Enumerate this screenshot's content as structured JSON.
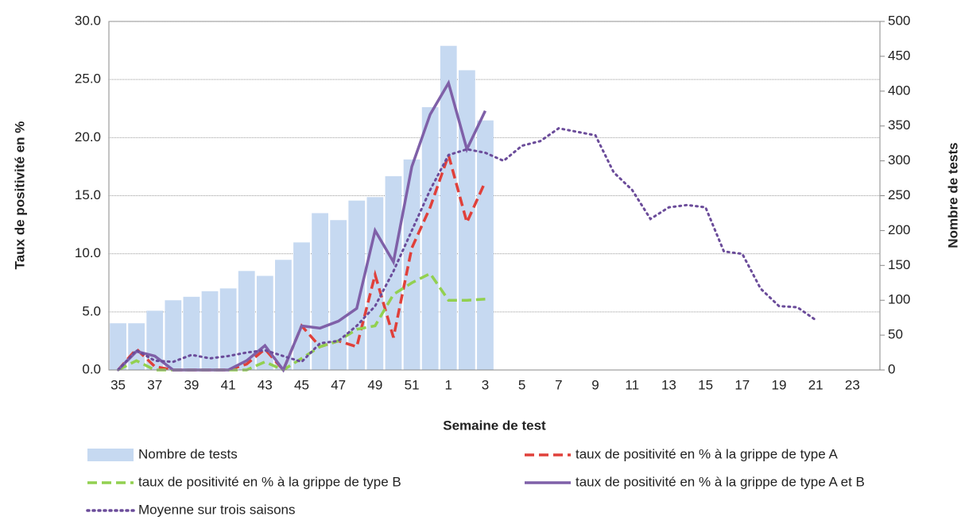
{
  "chart_data": {
    "type": "combo",
    "x_label": "Semaine de test",
    "y_label": "Taux de positivité en %",
    "y2_label": "Nombre de tests",
    "categories": [
      "35",
      null,
      "37",
      null,
      "39",
      null,
      "41",
      null,
      "43",
      null,
      "45",
      null,
      "47",
      null,
      "49",
      null,
      "51",
      null,
      "1",
      null,
      "3",
      null,
      "5",
      null,
      "7",
      null,
      "9",
      null,
      "11",
      null,
      "13",
      null,
      "15",
      null,
      "17",
      null,
      "19",
      null,
      "21",
      null,
      "23",
      null
    ],
    "ylim": [
      0,
      30
    ],
    "yticks": [
      {
        "value": 0,
        "label": "0.0"
      },
      {
        "value": 5,
        "label": "5.0"
      },
      {
        "value": 10,
        "label": "10.0"
      },
      {
        "value": 15,
        "label": "15.0"
      },
      {
        "value": 20,
        "label": "20.0"
      },
      {
        "value": 25,
        "label": "25.0"
      },
      {
        "value": 30,
        "label": "30.0"
      }
    ],
    "y2lim": [
      0,
      500
    ],
    "y2ticks": [
      0,
      50,
      100,
      150,
      200,
      250,
      300,
      350,
      400,
      450,
      500
    ],
    "grid": true,
    "series": [
      {
        "name": "Nombre de tests",
        "type": "bar",
        "axis": "y2",
        "color": "#c6d9f1",
        "values": [
          67,
          67,
          85,
          100,
          105,
          113,
          117,
          142,
          135,
          158,
          183,
          225,
          215,
          243,
          248,
          278,
          302,
          377,
          465,
          430,
          358,
          null,
          null,
          null,
          null,
          null,
          null,
          null,
          null,
          null,
          null,
          null,
          null,
          null,
          null,
          null,
          null,
          null,
          null,
          null,
          null,
          null
        ]
      },
      {
        "name": "taux de positivité en % à la grippe de type A",
        "type": "line",
        "dash": "dashed",
        "color": "#e0403a",
        "values": [
          0,
          1.8,
          0.3,
          0,
          0,
          0,
          0,
          0.5,
          1.8,
          0,
          3.8,
          2.0,
          2.5,
          2.0,
          8.2,
          2.8,
          10.5,
          14,
          18.5,
          12.7,
          16.2,
          null,
          null,
          null,
          null,
          null,
          null,
          null,
          null,
          null,
          null,
          null,
          null,
          null,
          null,
          null,
          null,
          null,
          null,
          null,
          null,
          null
        ]
      },
      {
        "name": "taux de positivité en % à la grippe de type B",
        "type": "line",
        "dash": "dashed",
        "color": "#92d050",
        "values": [
          0,
          0.8,
          0,
          0,
          0,
          0,
          0,
          0,
          0.7,
          0,
          1.0,
          2.0,
          2.5,
          3.5,
          3.8,
          6.5,
          7.5,
          8.3,
          6.0,
          6.0,
          6.1,
          null,
          null,
          null,
          null,
          null,
          null,
          null,
          null,
          null,
          null,
          null,
          null,
          null,
          null,
          null,
          null,
          null,
          null,
          null,
          null,
          null
        ]
      },
      {
        "name": "taux de positivité en % à la grippe de type A et B",
        "type": "line",
        "dash": "solid",
        "color": "#7f60a8",
        "values": [
          0,
          1.6,
          1.2,
          0,
          0,
          0,
          0,
          0.8,
          2.1,
          0,
          3.8,
          3.6,
          4.2,
          5.3,
          12.0,
          9.3,
          17.5,
          22,
          24.7,
          19,
          22.3,
          null,
          null,
          null,
          null,
          null,
          null,
          null,
          null,
          null,
          null,
          null,
          null,
          null,
          null,
          null,
          null,
          null,
          null,
          null,
          null,
          null
        ]
      },
      {
        "name": "Moyenne sur trois saisons",
        "type": "line",
        "dash": "dotted",
        "color": "#6b4c9a",
        "values": [
          0,
          1.7,
          0.8,
          0.7,
          1.3,
          1.0,
          1.2,
          1.5,
          1.7,
          1.2,
          0.7,
          2.3,
          2.5,
          3.8,
          5.5,
          8.5,
          12,
          15.5,
          18.5,
          19,
          18.7,
          18,
          19.3,
          19.7,
          20.8,
          20.5,
          20.2,
          17,
          15.5,
          13,
          14,
          14.2,
          14,
          10.2,
          10,
          7,
          5.5,
          5.4,
          4.3,
          null,
          null,
          null
        ]
      }
    ]
  }
}
